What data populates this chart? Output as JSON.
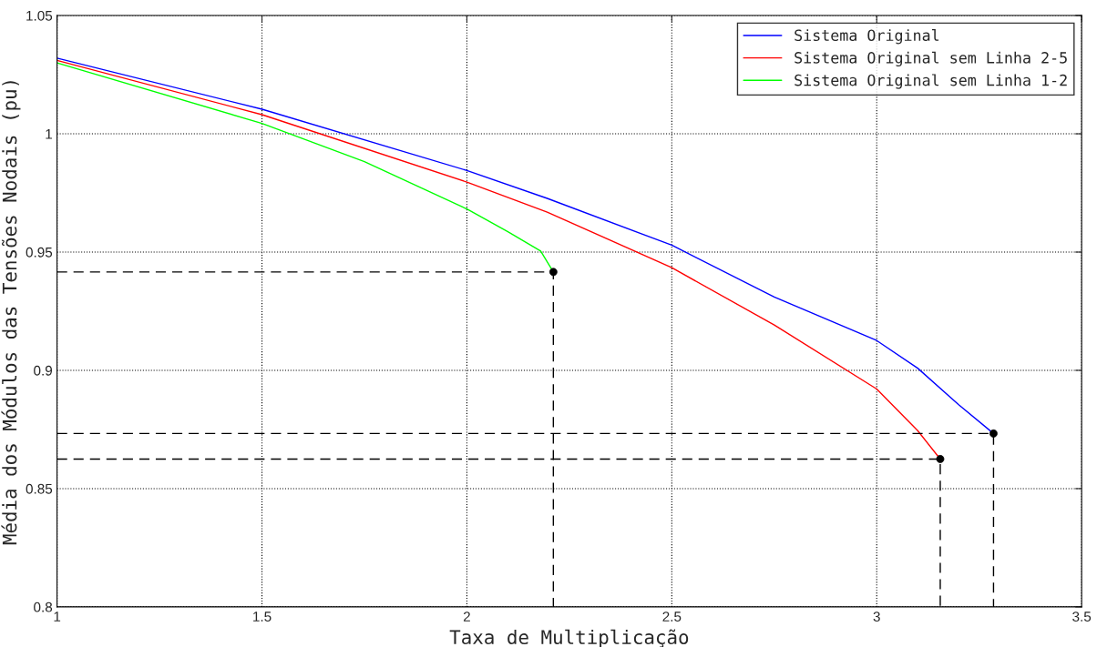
{
  "chart_data": {
    "type": "line",
    "xlabel": "Taxa de Multiplicação",
    "ylabel": "Média dos Módulos das Tensões Nodais (pu)",
    "xlim": [
      1,
      3.5
    ],
    "xticks": [
      1,
      1.5,
      2,
      2.5,
      3,
      3.5
    ],
    "ylim": [
      0.8,
      1.05
    ],
    "yticks": [
      0.8,
      0.85,
      0.9,
      0.95,
      1,
      1.05
    ],
    "grid": true,
    "legend": "top right",
    "series": [
      {
        "name": "Sistema Original",
        "color": "#0000ff",
        "x": [
          1,
          1.5,
          2,
          2.196,
          2.5,
          2.75,
          3,
          3.1,
          3.2,
          3.285
        ],
        "values": [
          1.032,
          1.0104,
          0.9845,
          0.9727,
          0.9529,
          0.931,
          0.9126,
          0.9009,
          0.8855,
          0.8733
        ]
      },
      {
        "name": "Sistema Original sem Linha 2-5",
        "color": "#ff0000",
        "x": [
          1,
          1.5,
          2,
          2.196,
          2.5,
          2.75,
          3,
          3.1,
          3.155
        ],
        "values": [
          1.031,
          1.0081,
          0.9796,
          0.9669,
          0.9434,
          0.9192,
          0.8921,
          0.8745,
          0.8625
        ]
      },
      {
        "name": "Sistema Original sem Linha 1-2",
        "color": "#00ff00",
        "x": [
          1,
          1.5,
          1.75,
          2,
          2.1,
          2.18,
          2.211
        ],
        "values": [
          1.03,
          1.0044,
          0.9882,
          0.9682,
          0.9586,
          0.9504,
          0.9416
        ]
      },
      {
        "type": "line",
        "color": "#000000",
        "line_style": "dashed",
        "x": [
          1,
          2.211,
          2.211
        ],
        "values": [
          0.9416,
          0.9416,
          0.8
        ]
      },
      {
        "type": "line",
        "color": "#000000",
        "line_style": "dashed",
        "x": [
          1,
          3.285,
          3.285
        ],
        "values": [
          0.8733,
          0.8733,
          0.8
        ]
      },
      {
        "type": "line",
        "color": "#000000",
        "line_style": "dashed",
        "x": [
          1,
          3.155,
          3.155
        ],
        "values": [
          0.8625,
          0.8625,
          0.8
        ]
      },
      {
        "type": "scatter",
        "color": "#000000",
        "marker": "circle",
        "x": [
          2.211,
          3.285,
          3.155
        ],
        "values": [
          0.9416,
          0.8733,
          0.8625
        ]
      }
    ]
  }
}
